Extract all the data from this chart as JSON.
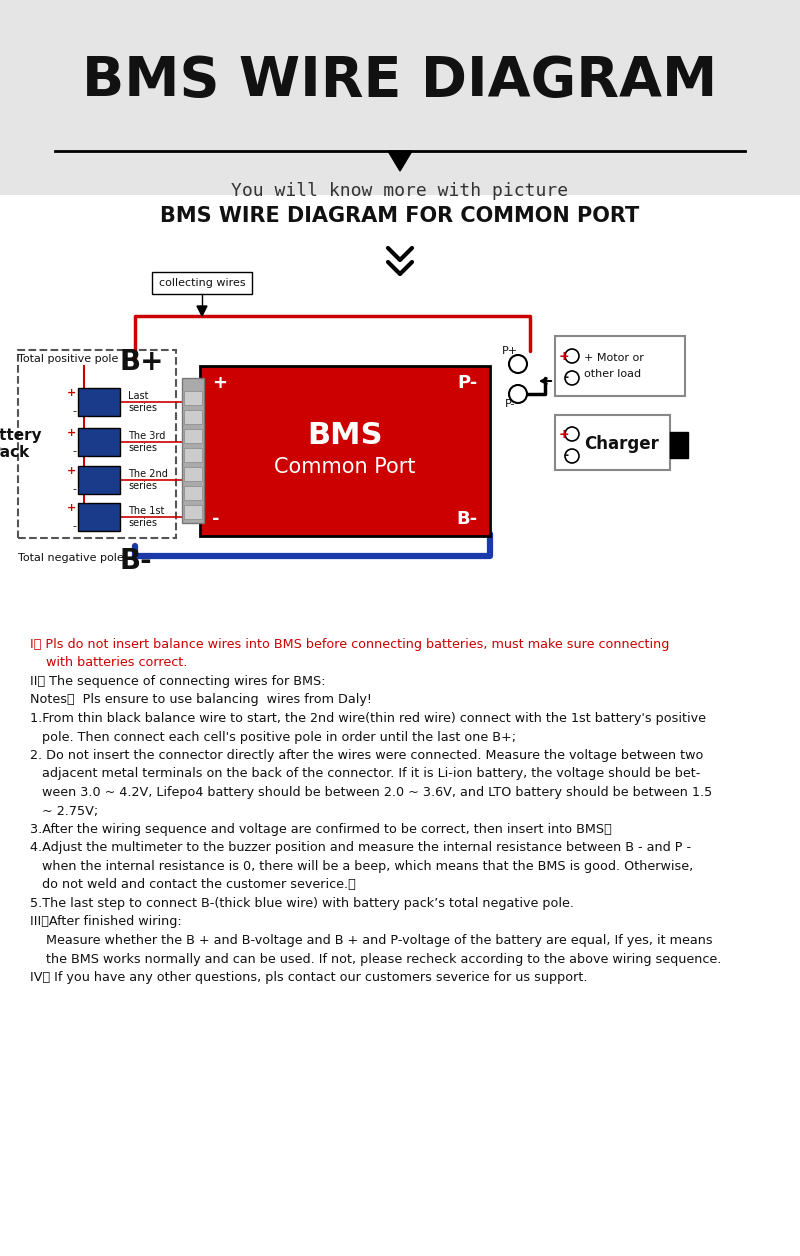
{
  "bg_top": "#e5e5e5",
  "bg_white": "#ffffff",
  "title_main": "BMS WIRE DIAGRAM",
  "title_sub": "You will know more with picture",
  "title_diagram": "BMS WIRE DIAGRAM FOR COMMON PORT",
  "bms_label1": "BMS",
  "bms_label2": "Common Port",
  "collecting_wires": "collecting wires",
  "total_pos": "Total positive pole",
  "total_neg": "Total negative pole",
  "battery_pack": "Battery\nPack",
  "series_labels": [
    "Last\nseries",
    "The 3rd\nseries",
    "The 2nd\nseries",
    "The 1st\nseries"
  ],
  "motor_label1": "+ Motor or",
  "motor_label2": "other load",
  "charger_label": "Charger",
  "red": "#cc0000",
  "blue_dark": "#1a3a8a",
  "blue_wire": "#1a3aaa",
  "text_color": "#111111",
  "instr_lines": [
    {
      "indent": 0,
      "bold_prefix": "I、",
      "rest": " Pls do not insert balance wires into BMS before connecting batteries, must make sure connecting",
      "color": "#cc0000"
    },
    {
      "indent": 1,
      "bold_prefix": "",
      "rest": "    with batteries correct.",
      "color": "#cc0000"
    },
    {
      "indent": 0,
      "bold_prefix": "II、",
      "rest": " The sequence of connecting wires for BMS:",
      "color": "#111111"
    },
    {
      "indent": 0,
      "bold_prefix": "Notes：",
      "rest": "  Pls ensure to use balancing  wires from Daly!",
      "color": "#111111"
    },
    {
      "indent": 0,
      "bold_prefix": "1.",
      "rest": "From thin black balance wire to start, the 2nd wire(thin red wire) connect with the 1st battery's positive",
      "color": "#111111"
    },
    {
      "indent": 1,
      "bold_prefix": "",
      "rest": "   pole. Then connect each cell's positive pole in order until the last one B+;",
      "color": "#111111"
    },
    {
      "indent": 0,
      "bold_prefix": "2.",
      "rest": " Do not insert the connector directly after the wires were connected. Measure the voltage between two",
      "color": "#111111"
    },
    {
      "indent": 1,
      "bold_prefix": "",
      "rest": "   adjacent metal terminals on the back of the connector. If it is Li-ion battery, the voltage should be bet-",
      "color": "#111111"
    },
    {
      "indent": 1,
      "bold_prefix": "",
      "rest": "   ween 3.0 ~ 4.2V, Lifepo4 battery should be between 2.0 ~ 3.6V, and LTO battery should be between 1.5",
      "color": "#111111"
    },
    {
      "indent": 1,
      "bold_prefix": "",
      "rest": "   ~ 2.75V;",
      "color": "#111111"
    },
    {
      "indent": 0,
      "bold_prefix": "3.",
      "rest": "After the wiring sequence and voltage are confirmed to be correct, then insert into BMS；",
      "color": "#111111"
    },
    {
      "indent": 0,
      "bold_prefix": "4.",
      "rest": "Adjust the multimeter to the buzzer position and measure the internal resistance between B - and P -",
      "color": "#111111"
    },
    {
      "indent": 1,
      "bold_prefix": "",
      "rest": "   when the internal resistance is 0, there will be a beep, which means that the BMS is good. Otherwise,",
      "color": "#111111"
    },
    {
      "indent": 1,
      "bold_prefix": "",
      "rest": "   do not weld and contact the customer severice.；",
      "color": "#111111"
    },
    {
      "indent": 0,
      "bold_prefix": "5.",
      "rest": "The last step to connect B-(thick blue wire) with battery pack’s total negative pole.",
      "color": "#111111"
    },
    {
      "indent": 0,
      "bold_prefix": "III、",
      "rest": "After finished wiring:",
      "color": "#111111"
    },
    {
      "indent": 1,
      "bold_prefix": "",
      "rest": "    Measure whether the B + and B-voltage and B + and P-voltage of the battery are equal, If yes, it means",
      "color": "#111111"
    },
    {
      "indent": 1,
      "bold_prefix": "",
      "rest": "    the BMS works normally and can be used. If not, please recheck according to the above wiring sequence.",
      "color": "#111111"
    },
    {
      "indent": 0,
      "bold_prefix": "IV、",
      "rest": " If you have any other questions, pls contact our customers severice for us support.",
      "color": "#111111"
    }
  ]
}
